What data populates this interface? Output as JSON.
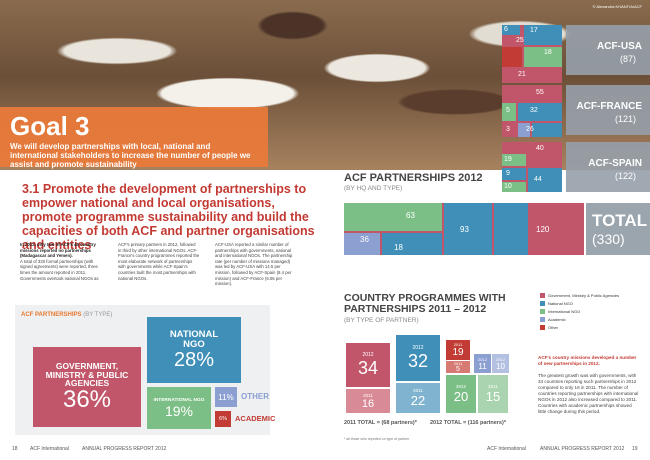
{
  "photo": {
    "credit": "© Alexandra KHANTIA/ACF"
  },
  "goal": {
    "title": "Goal 3",
    "text": "We will develop partnerships with local, national and international stakeholders to increase the number of people we assist and promote sustainability"
  },
  "section": {
    "heading": "3.1 Promote the development of partnerships to empower national and local organisations, promote programme sustainability and build the capacities of both ACF and partner organisations and entities"
  },
  "columns": {
    "col1_bold": "In 2012, only two of ACF's 45 country missions reported no partnerships (Madagascar and Yemen).",
    "col1_text": "A total of 330 formal partnerships (with signed agreements) were reported, three times the amount reported in 2011. Governments overtook national NGOs as",
    "col2_text": "ACF's primary partners in 2012, followed in third by other international NGOs. ACF-France's country programmes reported the most elaborate network of partnerships with governments while ACF-Spain's countries built the most partnerships with national NGOs.",
    "col3_text": "ACF-USA reported a similar number of partnerships with governments, national and international NGOs. The partnership rate (per number of missions managed) was led by ACF-USA with 14.5 per mission, followed by ACF-Spain (8.4 per mission) and ACF-France (6.05 per mission)."
  },
  "type_panel": {
    "title": "ACF PARTNERSHIPS",
    "title_suffix": "(BY TYPE)",
    "boxes": [
      {
        "label": "GOVERNMENT, MINISTRY & PUBLIC AGENCIES",
        "pct": "36%"
      },
      {
        "label": "NATIONAL NGO",
        "pct": "28%"
      },
      {
        "label": "INTERNATIONAL NGO",
        "pct": "19%"
      },
      {
        "label": "OTHER",
        "pct": "11%"
      },
      {
        "label": "ACADEMIC",
        "pct": "6%"
      }
    ]
  },
  "hq_chart": {
    "title": "ACF PARTNERSHIPS 2012",
    "subtitle": "(BY HQ AND TYPE)",
    "countries": [
      {
        "name": "ACF-USA",
        "total": "(87)",
        "numbers": [
          "6",
          "17",
          "25",
          "18",
          "21"
        ]
      },
      {
        "name": "ACF-FRANCE",
        "total": "(121)",
        "numbers": [
          "55",
          "32",
          "5",
          "3",
          "26"
        ]
      },
      {
        "name": "ACF-SPAIN",
        "total": "(122)",
        "numbers": [
          "40",
          "19",
          "9",
          "44",
          "10"
        ]
      },
      {
        "name": "TOTAL",
        "total": "(330)",
        "numbers": [
          "63",
          "36",
          "18",
          "93",
          "120"
        ]
      }
    ]
  },
  "country_programmes": {
    "title": "COUNTRY PROGRAMMES WITH PARTNERSHIPS 2011 – 2012",
    "subtitle": "(BY TYPE OF PARTNER)",
    "legend": [
      "Government, Ministry & Public Agencies",
      "National NGO",
      "International NGO",
      "Academic",
      "Other"
    ],
    "groups": [
      {
        "year_a": "2012",
        "val_a": "34",
        "year_b": "2011",
        "val_b": "16"
      },
      {
        "year_a": "2012",
        "val_a": "32",
        "year_b": "2011",
        "val_b": "22"
      },
      {
        "year_a": "2012",
        "val_a": "20",
        "year_b": "2011",
        "val_b": "15"
      },
      {
        "year_a": "2011",
        "val_a": "19",
        "year_b": "2011",
        "val_b": "5"
      },
      {
        "year_a": "2012",
        "val_a": "11",
        "year_b": "2012",
        "val_b": "10"
      }
    ],
    "total_2011": "2011 TOTAL = (68 partners)*",
    "total_2012": "2012 TOTAL = (116 partners)*",
    "footnote": "* all those who reported on type of partner",
    "note_bold": "ACF's country missions developed a number of new partnerships in 2012.",
    "note_text": "The greatest growth was with governments, with 34 countries reporting such partnerships in 2012 compared to only 16 in 2011. The number of countries reporting partnerships with international NGOs in 2012 also increased compared to 2011. Countries with academic partnerships showed little change during this period."
  },
  "footer": {
    "left_page": "18",
    "left_org": "ACF International",
    "left_report": "ANNUAL PROGRESS REPORT 2012",
    "right_org": "ACF International",
    "right_report": "ANNUAL PROGRESS REPORT 2012",
    "right_page": "19"
  },
  "colors": {
    "government": "#c1566a",
    "national_ngo": "#3f8fb8",
    "international_ngo": "#7cbf86",
    "academic": "#8b9fd1",
    "other": "#c23b34",
    "orange": "#e97a39"
  }
}
